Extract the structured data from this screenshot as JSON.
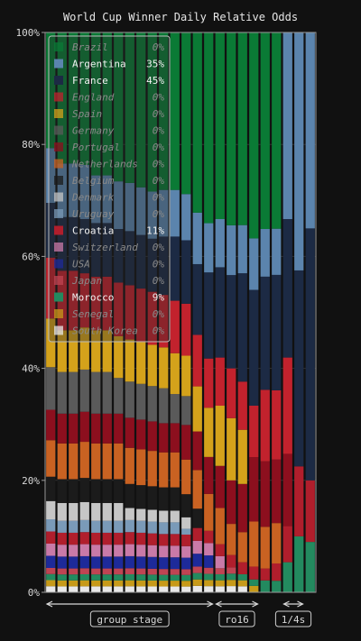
{
  "chart_data": {
    "type": "bar",
    "stacked": true,
    "title": "World Cup Winner Daily Relative Odds",
    "y_ticks": [
      "0%",
      "20%",
      "40%",
      "60%",
      "80%",
      "100%"
    ],
    "ylim": [
      0,
      100
    ],
    "grid": true,
    "legend_position": "top-left",
    "days": 24,
    "series": [
      {
        "name": "Brazil",
        "color": "#0a7a35",
        "final": "0%",
        "values": [
          19,
          22,
          22,
          22,
          24,
          24,
          25,
          25,
          26,
          27,
          27,
          27,
          28,
          28,
          31,
          31,
          31,
          32,
          32,
          33,
          34,
          0,
          0,
          0
        ]
      },
      {
        "name": "Argentina",
        "color": "#5b84ad",
        "final": "35%",
        "values": [
          9,
          9,
          9,
          9,
          8,
          8,
          8,
          8,
          8,
          8,
          8,
          8,
          8,
          8,
          8,
          8,
          8,
          8,
          8,
          8,
          8,
          31,
          34,
          35
        ]
      },
      {
        "name": "France",
        "color": "#1c2a44",
        "final": "45%",
        "values": [
          9,
          9,
          9,
          9,
          9,
          9,
          9,
          9,
          9,
          9,
          10,
          11,
          11,
          11,
          14,
          15,
          15,
          18,
          18,
          19,
          20,
          23,
          28,
          45
        ]
      },
      {
        "name": "England",
        "color": "#c2222d",
        "final": "0%",
        "values": [
          10,
          10,
          10,
          9,
          9,
          9,
          9,
          9,
          9,
          9,
          9,
          9,
          9,
          8,
          8,
          8,
          8,
          8,
          8,
          12,
          12,
          16,
          0,
          0
        ]
      },
      {
        "name": "Spain",
        "color": "#d4a21b",
        "final": "0%",
        "values": [
          8,
          7,
          7,
          7,
          7,
          7,
          7,
          7,
          7,
          7,
          7,
          7,
          7,
          7,
          8,
          10,
          10,
          9,
          0,
          0,
          0,
          0,
          0,
          0
        ]
      },
      {
        "name": "Germany",
        "color": "#5a5a5a",
        "final": "0%",
        "values": [
          7,
          7,
          7,
          7,
          7,
          7,
          6,
          6,
          6,
          6,
          6,
          5,
          5,
          0,
          0,
          0,
          0,
          0,
          0,
          0,
          0,
          0,
          0,
          0
        ]
      },
      {
        "name": "Portugal",
        "color": "#8c0f1e",
        "final": "0%",
        "values": [
          5,
          5,
          5,
          5,
          5,
          5,
          5,
          5,
          5,
          5,
          5,
          5,
          6,
          6,
          6,
          7,
          7,
          8,
          10,
          11,
          11,
          12,
          0,
          0
        ]
      },
      {
        "name": "Netherlands",
        "color": "#c96222",
        "final": "0%",
        "values": [
          6,
          6,
          6,
          6,
          6,
          6,
          6,
          6,
          6,
          6,
          6,
          6,
          6,
          6,
          6,
          6,
          5,
          5,
          7,
          7,
          7,
          0,
          0,
          0
        ]
      },
      {
        "name": "Belgium",
        "color": "#1b1b1b",
        "final": "0%",
        "values": [
          4,
          4,
          4,
          4,
          4,
          4,
          4,
          4,
          4,
          4,
          4,
          4,
          4,
          3,
          0,
          0,
          0,
          0,
          0,
          0,
          0,
          0,
          0,
          0
        ]
      },
      {
        "name": "Denmark",
        "color": "#c6c6c6",
        "final": "0%",
        "values": [
          3,
          3,
          3,
          3,
          3,
          3,
          3,
          2,
          2,
          2,
          2,
          2,
          2,
          0,
          0,
          0,
          0,
          0,
          0,
          0,
          0,
          0,
          0,
          0
        ]
      },
      {
        "name": "Uruguay",
        "color": "#7a9ab8",
        "final": "0%",
        "values": [
          2,
          2,
          2,
          2,
          2,
          2,
          2,
          2,
          2,
          2,
          2,
          2,
          1,
          0,
          0,
          0,
          0,
          0,
          0,
          0,
          0,
          0,
          0,
          0
        ]
      },
      {
        "name": "Croatia",
        "color": "#b01e2c",
        "final": "11%",
        "values": [
          2,
          2,
          2,
          2,
          2,
          2,
          2,
          2,
          2,
          2,
          2,
          2,
          2,
          2,
          2,
          2,
          2,
          2,
          2,
          2,
          3,
          6,
          10,
          11
        ]
      },
      {
        "name": "Switzerland",
        "color": "#c97aa8",
        "final": "0%",
        "values": [
          2,
          2,
          2,
          2,
          2,
          2,
          2,
          2,
          2,
          2,
          2,
          2,
          2,
          2,
          2,
          2,
          0,
          0,
          0,
          0,
          0,
          0,
          0,
          0
        ]
      },
      {
        "name": "USA",
        "color": "#1d2a9a",
        "final": "0%",
        "values": [
          2,
          2,
          2,
          2,
          2,
          2,
          2,
          2,
          2,
          2,
          2,
          2,
          2,
          2,
          2,
          0,
          0,
          0,
          0,
          0,
          0,
          0,
          0,
          0
        ]
      },
      {
        "name": "Japan",
        "color": "#bf4453",
        "final": "0%",
        "values": [
          1,
          1,
          1,
          1,
          1,
          1,
          1,
          1,
          1,
          1,
          1,
          1,
          1,
          1,
          1,
          1,
          1,
          0,
          0,
          0,
          0,
          0,
          0,
          0
        ]
      },
      {
        "name": "Morocco",
        "color": "#238a5f",
        "final": "9%",
        "values": [
          1,
          1,
          1,
          1,
          1,
          1,
          1,
          1,
          1,
          1,
          1,
          1,
          1,
          1,
          1,
          1,
          1,
          1,
          1,
          2,
          2,
          5,
          8,
          9
        ]
      },
      {
        "name": "Senegal",
        "color": "#c79a19",
        "final": "0%",
        "values": [
          1,
          1,
          1,
          1,
          1,
          1,
          1,
          1,
          1,
          1,
          1,
          1,
          1,
          1,
          1,
          1,
          1,
          1,
          1,
          0,
          0,
          0,
          0,
          0
        ]
      },
      {
        "name": "South Korea",
        "color": "#e8e8e8",
        "final": "0%",
        "values": [
          1,
          1,
          1,
          1,
          1,
          1,
          1,
          1,
          1,
          1,
          1,
          1,
          1,
          1,
          1,
          1,
          1,
          1,
          0,
          0,
          0,
          0,
          0,
          0
        ]
      }
    ],
    "stages": [
      {
        "label": "group stage",
        "start": 0,
        "end": 14
      },
      {
        "label": "ro16",
        "start": 15,
        "end": 18
      },
      {
        "label": "1/4s",
        "start": 21,
        "end": 22
      }
    ]
  }
}
